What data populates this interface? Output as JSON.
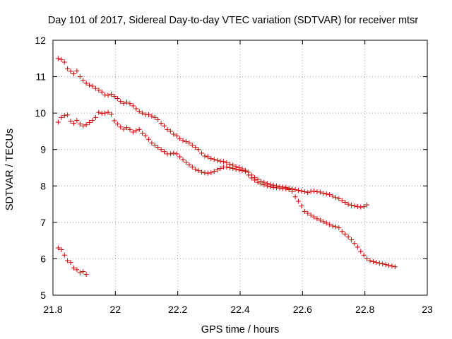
{
  "chart_data": {
    "type": "scatter",
    "title": "Day 101 of 2017, Sidereal Day-to-day VTEC variation (SDTVAR) for receiver mtsr",
    "xlabel": "GPS time / hours",
    "ylabel": "SDTVAR / TECUs",
    "xlim": [
      21.8,
      23.0
    ],
    "ylim": [
      5,
      12
    ],
    "xticks": [
      21.8,
      22,
      22.2,
      22.4,
      22.6,
      22.8,
      23
    ],
    "xtick_labels": [
      "21.8",
      "22",
      "22.2",
      "22.4",
      "22.6",
      "22.8",
      "23"
    ],
    "yticks": [
      5,
      6,
      7,
      8,
      9,
      10,
      11,
      12
    ],
    "ytick_labels": [
      "5",
      "6",
      "7",
      "8",
      "9",
      "10",
      "11",
      "12"
    ],
    "grid": true,
    "marker": "+",
    "marker_color": "#cc0000",
    "series": [
      {
        "name": "trace-a",
        "x": [
          21.8167,
          21.8267,
          21.8367,
          21.8467,
          21.8567,
          21.8667,
          21.8767,
          21.8867,
          21.8967,
          21.9067,
          21.9167,
          21.9267,
          21.9367,
          21.9467,
          21.9567,
          21.9667,
          21.9767,
          21.9867,
          21.9967,
          22.0067,
          22.0167,
          22.0267,
          22.0367,
          22.0467,
          22.0567,
          22.0667,
          22.0767,
          22.0867,
          22.0967,
          22.1067,
          22.1167,
          22.1267,
          22.1367,
          22.1467,
          22.1567,
          22.1667,
          22.1767,
          22.1867,
          22.1967,
          22.2067,
          22.2167,
          22.2267,
          22.2367,
          22.2467,
          22.2567,
          22.2667,
          22.2767,
          22.2867,
          22.2967,
          22.3067,
          22.3167,
          22.3267,
          22.3367,
          22.3467,
          22.3567,
          22.3667,
          22.3767,
          22.3867,
          22.3967,
          22.4067,
          22.4167,
          22.4267,
          22.4367,
          22.4467,
          22.4567,
          22.4667,
          22.4767,
          22.4867,
          22.4967,
          22.5067,
          22.5167,
          22.5267,
          22.5367,
          22.5467,
          22.5567,
          22.5667,
          22.5767,
          22.5867,
          22.5967,
          22.6067,
          22.6167,
          22.6267,
          22.6367,
          22.6467,
          22.6567,
          22.6667,
          22.6767,
          22.6867,
          22.6967,
          22.7067,
          22.7167,
          22.7267,
          22.7367,
          22.7467,
          22.7567,
          22.7667,
          22.7767,
          22.7867,
          22.7967,
          22.8067
        ],
        "y": [
          11.5,
          11.47,
          11.4,
          11.22,
          11.15,
          11.08,
          11.16,
          11.0,
          10.9,
          10.82,
          10.77,
          10.74,
          10.68,
          10.63,
          10.58,
          10.5,
          10.49,
          10.52,
          10.46,
          10.4,
          10.32,
          10.27,
          10.3,
          10.26,
          10.2,
          10.12,
          10.05,
          10.0,
          9.96,
          9.96,
          9.92,
          9.88,
          9.82,
          9.72,
          9.65,
          9.55,
          9.5,
          9.42,
          9.38,
          9.3,
          9.25,
          9.22,
          9.18,
          9.12,
          9.06,
          9.0,
          8.9,
          8.82,
          8.8,
          8.75,
          8.73,
          8.7,
          8.68,
          8.67,
          8.64,
          8.6,
          8.57,
          8.53,
          8.5,
          8.47,
          8.43,
          8.38,
          8.3,
          8.23,
          8.18,
          8.13,
          8.1,
          8.07,
          8.04,
          8.02,
          8.0,
          7.98,
          7.97,
          7.96,
          7.94,
          7.92,
          7.9,
          7.88,
          7.86,
          7.84,
          7.82,
          7.85,
          7.86,
          7.84,
          7.83,
          7.8,
          7.78,
          7.76,
          7.72,
          7.68,
          7.65,
          7.6,
          7.55,
          7.5,
          7.47,
          7.45,
          7.43,
          7.42,
          7.43,
          7.48
        ]
      },
      {
        "name": "trace-b",
        "x": [
          21.8167,
          21.8267,
          21.8367,
          21.8467,
          21.8567,
          21.8667,
          21.8767,
          21.8867,
          21.8967,
          21.9067,
          21.9167,
          21.9267,
          21.9367,
          21.9467,
          21.9567,
          21.9667,
          21.9767,
          21.9867,
          21.9967,
          22.0067,
          22.0167,
          22.0267,
          22.0367,
          22.0467,
          22.0567,
          22.0667,
          22.0767,
          22.0867,
          22.0967,
          22.1067,
          22.1167,
          22.1267,
          22.1367,
          22.1467,
          22.1567,
          22.1667,
          22.1767,
          22.1867,
          22.1967,
          22.2067,
          22.2167,
          22.2267,
          22.2367,
          22.2467,
          22.2567,
          22.2667,
          22.2767,
          22.2867,
          22.2967,
          22.3067,
          22.3167,
          22.3267,
          22.3367,
          22.3467,
          22.3567,
          22.3667,
          22.3767,
          22.3867,
          22.3967,
          22.4067,
          22.4167,
          22.4267,
          22.4367,
          22.4467,
          22.4567,
          22.4667,
          22.4767,
          22.4867,
          22.4967,
          22.5067,
          22.5167,
          22.5267,
          22.5367,
          22.5467,
          22.5567,
          22.5667,
          22.5767,
          22.5867,
          22.5967,
          22.6067,
          22.6167,
          22.6267,
          22.6367,
          22.6467,
          22.6567,
          22.6667,
          22.6767,
          22.6867,
          22.6967,
          22.7067,
          22.7167,
          22.7267,
          22.7367,
          22.7467,
          22.7567,
          22.7667,
          22.7767,
          22.7867,
          22.7967,
          22.8067,
          22.8167,
          22.8267,
          22.8367,
          22.8467,
          22.8567,
          22.8667,
          22.8767,
          22.8867,
          22.8967
        ],
        "y": [
          9.75,
          9.88,
          9.93,
          9.95,
          9.78,
          9.72,
          9.8,
          9.7,
          9.65,
          9.68,
          9.74,
          9.8,
          9.88,
          10.02,
          9.99,
          10.0,
          10.02,
          9.97,
          9.79,
          9.7,
          9.62,
          9.56,
          9.6,
          9.55,
          9.48,
          9.52,
          9.55,
          9.45,
          9.38,
          9.28,
          9.18,
          9.12,
          9.06,
          9.0,
          8.94,
          8.88,
          8.88,
          8.9,
          8.88,
          8.8,
          8.72,
          8.65,
          8.58,
          8.52,
          8.46,
          8.42,
          8.38,
          8.36,
          8.35,
          8.36,
          8.4,
          8.44,
          8.48,
          8.52,
          8.52,
          8.5,
          8.48,
          8.46,
          8.44,
          8.42,
          8.4,
          8.3,
          8.22,
          8.16,
          8.1,
          8.06,
          8.03,
          8.0,
          7.98,
          7.96,
          7.95,
          7.94,
          7.93,
          7.92,
          7.9,
          7.85,
          7.7,
          7.58,
          7.45,
          7.3,
          7.25,
          7.2,
          7.15,
          7.1,
          7.06,
          7.02,
          6.98,
          6.94,
          6.9,
          6.88,
          6.85,
          6.75,
          6.68,
          6.6,
          6.52,
          6.42,
          6.32,
          6.2,
          6.1,
          6.0,
          5.95,
          5.92,
          5.9,
          5.88,
          5.86,
          5.84,
          5.82,
          5.8,
          5.78
        ]
      },
      {
        "name": "trace-c",
        "x": [
          21.8167,
          21.8267,
          21.8367,
          21.8467,
          21.8567,
          21.8667,
          21.8767,
          21.8867,
          21.8967,
          21.9067
        ],
        "y": [
          6.3,
          6.25,
          6.1,
          5.95,
          5.9,
          5.75,
          5.7,
          5.62,
          5.65,
          5.57
        ]
      }
    ]
  }
}
